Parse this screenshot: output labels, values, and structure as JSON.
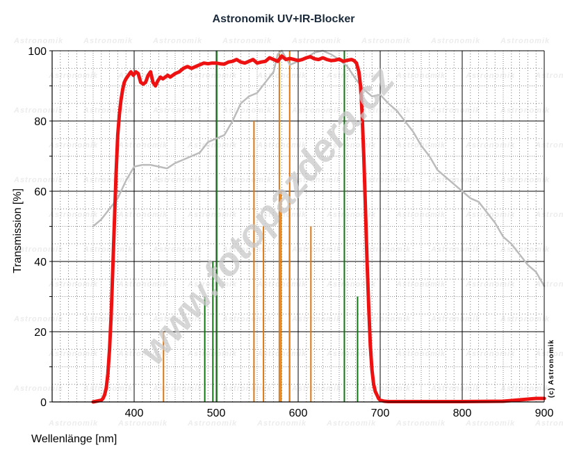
{
  "chart_data": {
    "type": "line",
    "title": "Astronomik UV+IR-Blocker",
    "xlabel": "Wellenlänge [nm]",
    "ylabel": "Transmission [%]",
    "xlim": [
      300,
      900
    ],
    "ylim": [
      0,
      100
    ],
    "xticks": [
      400,
      500,
      600,
      700,
      800,
      900
    ],
    "yticks": [
      0,
      20,
      40,
      60,
      80,
      100
    ],
    "grid": true,
    "series": [
      {
        "color": "#ee1111",
        "x": [
          350,
          360,
          362,
          364,
          366,
          368,
          370,
          372,
          374,
          376,
          378,
          380,
          382,
          384,
          386,
          388,
          390,
          393,
          396,
          399,
          402,
          405,
          408,
          411,
          414,
          417,
          420,
          423,
          426,
          429,
          432,
          435,
          438,
          441,
          444,
          447,
          450,
          455,
          460,
          465,
          470,
          475,
          480,
          485,
          490,
          495,
          500,
          505,
          510,
          515,
          520,
          525,
          530,
          535,
          540,
          545,
          550,
          555,
          560,
          565,
          570,
          575,
          580,
          585,
          590,
          595,
          600,
          605,
          610,
          615,
          620,
          625,
          630,
          635,
          640,
          645,
          650,
          655,
          660,
          665,
          668,
          671,
          674,
          676,
          678,
          680,
          682,
          684,
          686,
          688,
          690,
          692,
          694,
          696,
          698,
          700,
          705,
          710,
          720,
          750,
          800,
          850,
          870,
          880,
          890,
          900
        ],
        "y": [
          0,
          0.5,
          1,
          2,
          4,
          8,
          15,
          25,
          38,
          52,
          65,
          76,
          82,
          86,
          89,
          91,
          92,
          93,
          94,
          93,
          94,
          93.5,
          91,
          90.5,
          91,
          93,
          94,
          91,
          90,
          91.5,
          92.5,
          92,
          92.5,
          93,
          92.5,
          93,
          93.5,
          94,
          95,
          95.5,
          95,
          95.5,
          96,
          96.5,
          96.3,
          96.5,
          96.5,
          96.3,
          96.2,
          96.8,
          97,
          97.5,
          96.8,
          96.5,
          97,
          97.5,
          96.5,
          96.8,
          97,
          98,
          97.5,
          97,
          98.5,
          97.5,
          97.8,
          97.5,
          97.2,
          97.5,
          98,
          98.3,
          97.7,
          97.5,
          98,
          97.5,
          97.2,
          97.3,
          97.6,
          97,
          97.3,
          97.5,
          97.2,
          96.5,
          94,
          90,
          82,
          70,
          55,
          40,
          27,
          16,
          9,
          5,
          3,
          2,
          1,
          0.5,
          0.2,
          0.1,
          0.1,
          0.1,
          0.1,
          0.2,
          0.6,
          0.8,
          1,
          1
        ]
      },
      {
        "color": "#bbbbbb",
        "x": [
          350,
          360,
          370,
          380,
          390,
          400,
          410,
          420,
          430,
          440,
          450,
          460,
          470,
          480,
          490,
          500,
          510,
          520,
          530,
          540,
          550,
          560,
          570,
          575,
          580,
          585,
          590,
          600,
          610,
          620,
          630,
          640,
          650,
          660,
          670,
          680,
          690,
          700,
          710,
          720,
          730,
          740,
          750,
          760,
          770,
          780,
          790,
          800,
          810,
          820,
          830,
          840,
          850,
          860,
          870,
          880,
          890,
          900
        ],
        "y": [
          50,
          52,
          55,
          58,
          63,
          67,
          67.5,
          67.5,
          67,
          66.5,
          68,
          69,
          70,
          71,
          74,
          75,
          76,
          80,
          85,
          87,
          88,
          91,
          94,
          99,
          100,
          98,
          96,
          97,
          98,
          99.5,
          100,
          99,
          97.5,
          95.5,
          92,
          89,
          87,
          87.5,
          85,
          83,
          80,
          77,
          73,
          70,
          66,
          64,
          62,
          60,
          58,
          57,
          54,
          51,
          47,
          45,
          42,
          39,
          37,
          33
        ]
      }
    ],
    "spectral_lines": [
      {
        "x": 435.8,
        "y": 20,
        "color": "#dd7711"
      },
      {
        "x": 486.1,
        "y": 30,
        "color": "#117711"
      },
      {
        "x": 496,
        "y": 40,
        "color": "#117711"
      },
      {
        "x": 500.7,
        "y": 100,
        "color": "#117711"
      },
      {
        "x": 546.1,
        "y": 80,
        "color": "#dd7711"
      },
      {
        "x": 557.7,
        "y": 50,
        "color": "#dd7711"
      },
      {
        "x": 577,
        "y": 100,
        "color": "#dd7711"
      },
      {
        "x": 579,
        "y": 60,
        "color": "#dd7711"
      },
      {
        "x": 589.3,
        "y": 60,
        "color": "#dd7711"
      },
      {
        "x": 589.6,
        "y": 100,
        "color": "#dd7711"
      },
      {
        "x": 615.5,
        "y": 50,
        "color": "#dd7711"
      },
      {
        "x": 656.3,
        "y": 100,
        "color": "#117711"
      },
      {
        "x": 672.4,
        "y": 30,
        "color": "#117711"
      }
    ],
    "watermark": "www.fotopazdera.cz",
    "background_mark": "Astronomik",
    "copyright": "(c) Astronomik"
  }
}
